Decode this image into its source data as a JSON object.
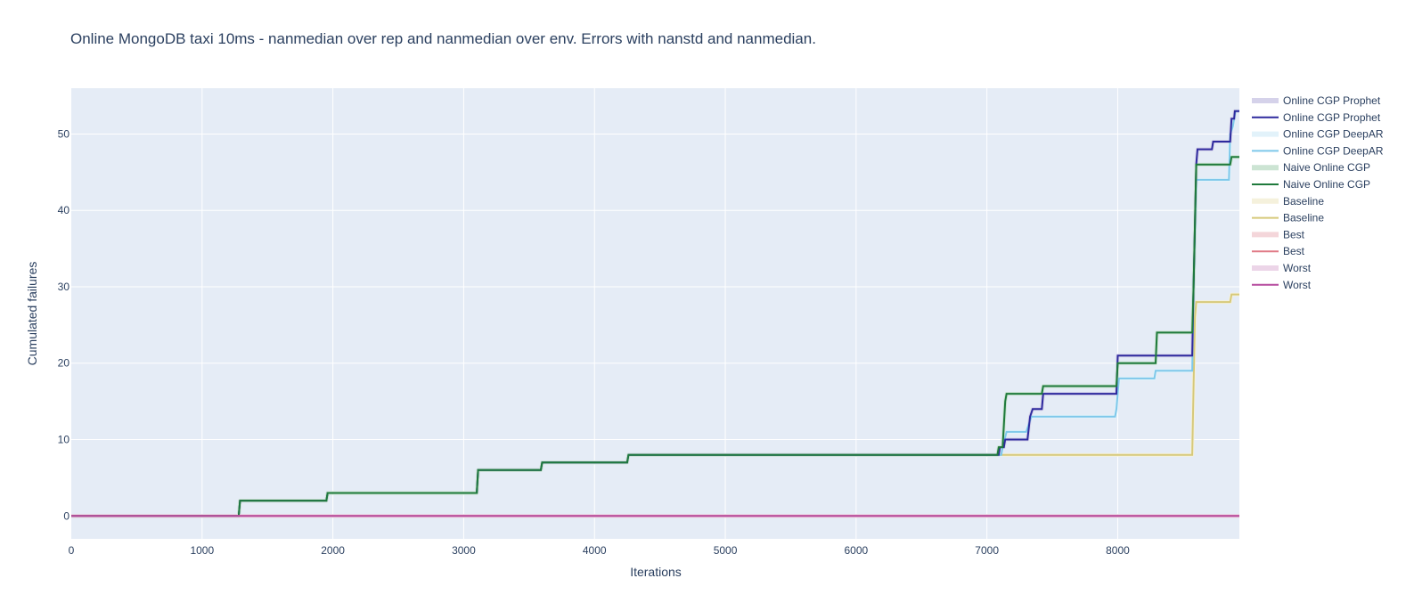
{
  "chart_data": {
    "type": "line",
    "title": "Online MongoDB taxi 10ms - nanmedian over rep and nanmedian over env. Errors with nanstd and nanmedian.",
    "xlabel": "Iterations",
    "ylabel": "Cumulated failures",
    "xlim": [
      0,
      8930
    ],
    "ylim": [
      -3,
      56
    ],
    "x_ticks": [
      0,
      1000,
      2000,
      3000,
      4000,
      5000,
      6000,
      7000,
      8000
    ],
    "y_ticks": [
      0,
      10,
      20,
      30,
      40,
      50
    ],
    "grid": true,
    "legend_position": "right",
    "colors": {
      "plot_background": "#e5ecf6",
      "grid": "#ffffff",
      "text": "#2a3f5f"
    },
    "series": [
      {
        "name": "Online CGP Prophet",
        "color": "#2e2a9e",
        "band_color": "#d5d2ea",
        "points": [
          [
            0,
            0
          ],
          [
            1280,
            0
          ],
          [
            1290,
            2
          ],
          [
            1950,
            2
          ],
          [
            1960,
            3
          ],
          [
            3100,
            3
          ],
          [
            3110,
            6
          ],
          [
            3590,
            6
          ],
          [
            3600,
            7
          ],
          [
            4250,
            7
          ],
          [
            4260,
            8
          ],
          [
            7090,
            8
          ],
          [
            7100,
            9
          ],
          [
            7130,
            9
          ],
          [
            7140,
            10
          ],
          [
            7310,
            10
          ],
          [
            7330,
            13
          ],
          [
            7350,
            14
          ],
          [
            7420,
            14
          ],
          [
            7430,
            16
          ],
          [
            7990,
            16
          ],
          [
            8000,
            21
          ],
          [
            8570,
            21
          ],
          [
            8580,
            30
          ],
          [
            8600,
            46
          ],
          [
            8610,
            48
          ],
          [
            8720,
            48
          ],
          [
            8730,
            49
          ],
          [
            8860,
            49
          ],
          [
            8870,
            52
          ],
          [
            8890,
            52
          ],
          [
            8895,
            53
          ],
          [
            8930,
            53
          ]
        ]
      },
      {
        "name": "Online CGP DeepAR",
        "color": "#7ec8ea",
        "band_color": "#e2f2fa",
        "points": [
          [
            0,
            0
          ],
          [
            1280,
            0
          ],
          [
            1290,
            2
          ],
          [
            1950,
            2
          ],
          [
            1960,
            3
          ],
          [
            3100,
            3
          ],
          [
            3110,
            6
          ],
          [
            3590,
            6
          ],
          [
            3600,
            7
          ],
          [
            4250,
            7
          ],
          [
            4260,
            8
          ],
          [
            7110,
            8
          ],
          [
            7120,
            9
          ],
          [
            7150,
            11
          ],
          [
            7300,
            11
          ],
          [
            7320,
            12
          ],
          [
            7340,
            13
          ],
          [
            7980,
            13
          ],
          [
            7990,
            14
          ],
          [
            8010,
            18
          ],
          [
            8280,
            18
          ],
          [
            8290,
            19
          ],
          [
            8570,
            19
          ],
          [
            8580,
            30
          ],
          [
            8600,
            44
          ],
          [
            8850,
            44
          ],
          [
            8860,
            50
          ],
          [
            8880,
            51
          ],
          [
            8900,
            53
          ],
          [
            8930,
            53
          ]
        ]
      },
      {
        "name": "Naive Online CGP",
        "color": "#1f7a3c",
        "band_color": "#cce4d3",
        "points": [
          [
            0,
            0
          ],
          [
            1280,
            0
          ],
          [
            1290,
            2
          ],
          [
            1950,
            2
          ],
          [
            1960,
            3
          ],
          [
            3100,
            3
          ],
          [
            3110,
            6
          ],
          [
            3590,
            6
          ],
          [
            3600,
            7
          ],
          [
            4250,
            7
          ],
          [
            4260,
            8
          ],
          [
            7080,
            8
          ],
          [
            7090,
            9
          ],
          [
            7120,
            9
          ],
          [
            7140,
            15
          ],
          [
            7150,
            16
          ],
          [
            7420,
            16
          ],
          [
            7430,
            17
          ],
          [
            7990,
            17
          ],
          [
            8000,
            20
          ],
          [
            8290,
            20
          ],
          [
            8300,
            24
          ],
          [
            8570,
            24
          ],
          [
            8580,
            30
          ],
          [
            8600,
            46
          ],
          [
            8860,
            46
          ],
          [
            8870,
            47
          ],
          [
            8930,
            47
          ]
        ]
      },
      {
        "name": "Baseline",
        "color": "#d6c97a",
        "band_color": "#f5f1dc",
        "points": [
          [
            0,
            0
          ],
          [
            1280,
            0
          ],
          [
            1290,
            2
          ],
          [
            1950,
            2
          ],
          [
            1960,
            3
          ],
          [
            3100,
            3
          ],
          [
            3110,
            6
          ],
          [
            3590,
            6
          ],
          [
            3600,
            7
          ],
          [
            4250,
            7
          ],
          [
            4260,
            8
          ],
          [
            8570,
            8
          ],
          [
            8590,
            26
          ],
          [
            8600,
            28
          ],
          [
            8860,
            28
          ],
          [
            8870,
            29
          ],
          [
            8930,
            29
          ]
        ]
      },
      {
        "name": "Best",
        "color": "#e07a86",
        "band_color": "#f4d6da",
        "points": [
          [
            0,
            0
          ],
          [
            8930,
            0
          ]
        ]
      },
      {
        "name": "Worst",
        "color": "#b64a9e",
        "band_color": "#ecd5e8",
        "points": [
          [
            0,
            0
          ],
          [
            8930,
            0
          ]
        ]
      }
    ],
    "legend": [
      {
        "label": "Online CGP Prophet",
        "series": 0,
        "kind": "band"
      },
      {
        "label": "Online CGP Prophet",
        "series": 0,
        "kind": "line"
      },
      {
        "label": "Online CGP DeepAR",
        "series": 1,
        "kind": "band"
      },
      {
        "label": "Online CGP DeepAR",
        "series": 1,
        "kind": "line"
      },
      {
        "label": "Naive Online CGP",
        "series": 2,
        "kind": "band"
      },
      {
        "label": "Naive Online CGP",
        "series": 2,
        "kind": "line"
      },
      {
        "label": "Baseline",
        "series": 3,
        "kind": "band"
      },
      {
        "label": "Baseline",
        "series": 3,
        "kind": "line"
      },
      {
        "label": "Best",
        "series": 4,
        "kind": "band"
      },
      {
        "label": "Best",
        "series": 4,
        "kind": "line"
      },
      {
        "label": "Worst",
        "series": 5,
        "kind": "band"
      },
      {
        "label": "Worst",
        "series": 5,
        "kind": "line"
      }
    ]
  }
}
